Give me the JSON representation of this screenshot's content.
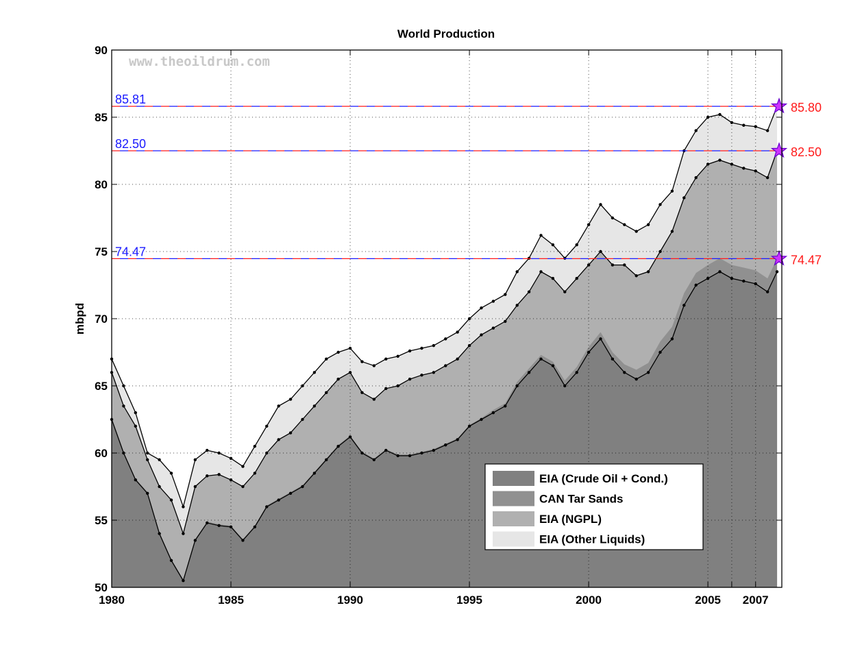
{
  "chart_data": {
    "type": "area",
    "title": "World Production",
    "ylabel": "mbpd",
    "xlabel": "",
    "watermark": "www.theoildrum.com",
    "xlim": [
      1980,
      2008.1
    ],
    "ylim": [
      50,
      90
    ],
    "xticks": [
      1980,
      1985,
      1990,
      1995,
      2000,
      2005,
      2006,
      2007
    ],
    "xtick_labels": [
      "1980",
      "1985",
      "1990",
      "1995",
      "2000",
      "2005",
      "",
      "2007"
    ],
    "yticks": [
      50,
      55,
      60,
      65,
      70,
      75,
      80,
      85,
      90
    ],
    "grid": true,
    "legend_position": "lower-right",
    "x": [
      1980.0,
      1980.5,
      1981.0,
      1981.5,
      1982.0,
      1982.5,
      1983.0,
      1983.5,
      1984.0,
      1984.5,
      1985.0,
      1985.5,
      1986.0,
      1986.5,
      1987.0,
      1987.5,
      1988.0,
      1988.5,
      1989.0,
      1989.5,
      1990.0,
      1990.5,
      1991.0,
      1991.5,
      1992.0,
      1992.5,
      1993.0,
      1993.5,
      1994.0,
      1994.5,
      1995.0,
      1995.5,
      1996.0,
      1996.5,
      1997.0,
      1997.5,
      1998.0,
      1998.5,
      1999.0,
      1999.5,
      2000.0,
      2000.5,
      2001.0,
      2001.5,
      2002.0,
      2002.5,
      2003.0,
      2003.5,
      2004.0,
      2004.5,
      2005.0,
      2005.5,
      2006.0,
      2006.5,
      2007.0,
      2007.5,
      2007.9
    ],
    "series": [
      {
        "name": "EIA (Crude Oil + Cond.)",
        "color": "#808080",
        "values": [
          62.5,
          60.0,
          58.0,
          57.0,
          54.0,
          52.0,
          50.5,
          53.5,
          54.8,
          54.6,
          54.5,
          53.5,
          54.5,
          56.0,
          56.5,
          57.0,
          57.5,
          58.5,
          59.5,
          60.5,
          61.2,
          60.0,
          59.5,
          60.2,
          59.8,
          59.8,
          60.0,
          60.2,
          60.6,
          61.0,
          62.0,
          62.5,
          63.0,
          63.5,
          65.0,
          66.0,
          67.0,
          66.5,
          65.0,
          66.0,
          67.5,
          68.5,
          67.0,
          66.0,
          65.5,
          66.0,
          67.5,
          68.5,
          71.0,
          72.5,
          73.0,
          73.5,
          73.0,
          72.8,
          72.6,
          72.0,
          73.5
        ]
      },
      {
        "name": "CAN Tar Sands",
        "color": "#909090",
        "values": [
          62.6,
          60.1,
          58.1,
          57.1,
          54.1,
          52.1,
          50.6,
          53.6,
          54.9,
          54.7,
          54.6,
          53.6,
          54.6,
          56.1,
          56.6,
          57.1,
          57.6,
          58.6,
          59.6,
          60.6,
          61.3,
          60.1,
          59.6,
          60.3,
          59.9,
          59.9,
          60.1,
          60.3,
          60.7,
          61.1,
          62.1,
          62.6,
          63.2,
          63.7,
          65.3,
          66.3,
          67.3,
          66.8,
          65.4,
          66.4,
          67.9,
          69.0,
          67.5,
          66.6,
          66.2,
          66.7,
          68.3,
          69.4,
          71.9,
          73.4,
          74.0,
          74.5,
          74.0,
          73.8,
          73.6,
          73.0,
          74.47
        ]
      },
      {
        "name": "EIA (NGPL)",
        "color": "#b0b0b0",
        "values": [
          66.0,
          63.5,
          62.0,
          59.5,
          57.5,
          56.5,
          54.0,
          57.5,
          58.3,
          58.4,
          58.0,
          57.5,
          58.5,
          60.0,
          61.0,
          61.5,
          62.5,
          63.5,
          64.5,
          65.5,
          66.0,
          64.5,
          64.0,
          64.8,
          65.0,
          65.5,
          65.8,
          66.0,
          66.5,
          67.0,
          68.0,
          68.8,
          69.3,
          69.8,
          71.0,
          72.0,
          73.5,
          73.0,
          72.0,
          73.0,
          74.0,
          75.0,
          74.0,
          74.0,
          73.2,
          73.5,
          75.0,
          76.5,
          79.0,
          80.5,
          81.5,
          81.8,
          81.5,
          81.2,
          81.0,
          80.5,
          82.5
        ]
      },
      {
        "name": "EIA (Other Liquids)",
        "color": "#e6e6e6",
        "values": [
          67.0,
          65.0,
          63.0,
          60.0,
          59.5,
          58.5,
          56.0,
          59.5,
          60.2,
          60.0,
          59.6,
          59.0,
          60.5,
          62.0,
          63.5,
          64.0,
          65.0,
          66.0,
          67.0,
          67.5,
          67.8,
          66.8,
          66.5,
          67.0,
          67.2,
          67.6,
          67.8,
          68.0,
          68.5,
          69.0,
          70.0,
          70.8,
          71.3,
          71.8,
          73.5,
          74.5,
          76.2,
          75.5,
          74.5,
          75.5,
          77.0,
          78.5,
          77.5,
          77.0,
          76.5,
          77.0,
          78.5,
          79.5,
          82.5,
          84.0,
          85.0,
          85.2,
          84.6,
          84.4,
          84.3,
          84.0,
          85.8
        ]
      }
    ],
    "reference_lines": [
      {
        "value": 85.81,
        "left_label": "85.81",
        "right_label": "85.80"
      },
      {
        "value": 82.5,
        "left_label": "82.50",
        "right_label": "82.50"
      },
      {
        "value": 74.47,
        "left_label": "74.47",
        "right_label": "74.47"
      }
    ],
    "legend": [
      {
        "label": "EIA (Crude Oil + Cond.)",
        "color": "#808080"
      },
      {
        "label": "CAN Tar Sands",
        "color": "#909090"
      },
      {
        "label": "EIA (NGPL)",
        "color": "#b0b0b0"
      },
      {
        "label": "EIA (Other Liquids)",
        "color": "#e6e6e6"
      }
    ],
    "colors": {
      "ref_left": "#1a1aff",
      "ref_right": "#ff1a1a",
      "ref_dash_blue": "#1a1aff",
      "ref_dash_red": "#ff1a1a",
      "star_fill": "#cc33ff",
      "star_stroke": "#6600cc"
    }
  }
}
